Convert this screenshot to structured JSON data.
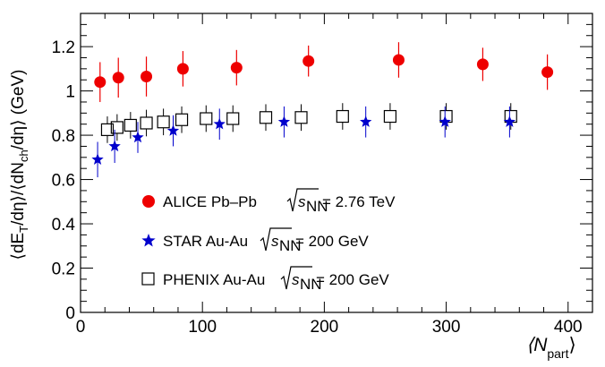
{
  "chart_data": {
    "type": "scatter",
    "title": "",
    "xlabel": {
      "main": "⟨N",
      "sub": "part",
      "close": "⟩"
    },
    "ylabel": {
      "p1": "⟨dE",
      "sub1": "T",
      "p2": "/dη⟩/⟨dN",
      "sub2": "ch",
      "p3": "/dη⟩ (GeV)"
    },
    "xlim": [
      0,
      420
    ],
    "ylim": [
      0,
      1.35
    ],
    "xticks": [
      0,
      100,
      200,
      300,
      400
    ],
    "xtick_labels": [
      "0",
      "100",
      "200",
      "300",
      "400"
    ],
    "yticks": [
      0,
      0.2,
      0.4,
      0.6,
      0.8,
      1,
      1.2
    ],
    "ytick_labels": [
      "0",
      "0.2",
      "0.4",
      "0.6",
      "0.8",
      "1",
      "1.2"
    ],
    "grid": false,
    "legend_position": "lower-left",
    "series": [
      {
        "name": "ALICE Pb–Pb",
        "energy_label": "= 2.76 TeV",
        "marker": "circle",
        "color": "#ee0000",
        "points": [
          {
            "x": 16,
            "y": 1.04,
            "err": 0.09
          },
          {
            "x": 31,
            "y": 1.06,
            "err": 0.09
          },
          {
            "x": 54,
            "y": 1.065,
            "err": 0.09
          },
          {
            "x": 84,
            "y": 1.1,
            "err": 0.08
          },
          {
            "x": 128,
            "y": 1.105,
            "err": 0.08
          },
          {
            "x": 187,
            "y": 1.135,
            "err": 0.07
          },
          {
            "x": 261,
            "y": 1.14,
            "err": 0.08
          },
          {
            "x": 330,
            "y": 1.12,
            "err": 0.075
          },
          {
            "x": 383,
            "y": 1.085,
            "err": 0.08
          }
        ]
      },
      {
        "name": "STAR Au-Au",
        "energy_label": "= 200 GeV",
        "marker": "star",
        "color": "#0000cc",
        "points": [
          {
            "x": 14,
            "y": 0.69,
            "err": 0.08
          },
          {
            "x": 28,
            "y": 0.75,
            "err": 0.075
          },
          {
            "x": 47,
            "y": 0.79,
            "err": 0.07
          },
          {
            "x": 76,
            "y": 0.82,
            "err": 0.07
          },
          {
            "x": 114,
            "y": 0.85,
            "err": 0.07
          },
          {
            "x": 167,
            "y": 0.86,
            "err": 0.07
          },
          {
            "x": 234,
            "y": 0.86,
            "err": 0.07
          },
          {
            "x": 299,
            "y": 0.86,
            "err": 0.07
          },
          {
            "x": 352,
            "y": 0.86,
            "err": 0.07
          }
        ]
      },
      {
        "name": "PHENIX Au-Au",
        "energy_label": "= 200 GeV",
        "marker": "open-square",
        "color": "#000000",
        "points": [
          {
            "x": 22,
            "y": 0.825,
            "err": 0.06
          },
          {
            "x": 30,
            "y": 0.835,
            "err": 0.06
          },
          {
            "x": 41,
            "y": 0.845,
            "err": 0.06
          },
          {
            "x": 54,
            "y": 0.855,
            "err": 0.06
          },
          {
            "x": 68,
            "y": 0.86,
            "err": 0.06
          },
          {
            "x": 83,
            "y": 0.87,
            "err": 0.06
          },
          {
            "x": 103,
            "y": 0.875,
            "err": 0.06
          },
          {
            "x": 125,
            "y": 0.875,
            "err": 0.06
          },
          {
            "x": 152,
            "y": 0.88,
            "err": 0.06
          },
          {
            "x": 181,
            "y": 0.88,
            "err": 0.06
          },
          {
            "x": 215,
            "y": 0.885,
            "err": 0.06
          },
          {
            "x": 254,
            "y": 0.885,
            "err": 0.06
          },
          {
            "x": 300,
            "y": 0.885,
            "err": 0.06
          },
          {
            "x": 353,
            "y": 0.885,
            "err": 0.06
          }
        ]
      }
    ]
  }
}
